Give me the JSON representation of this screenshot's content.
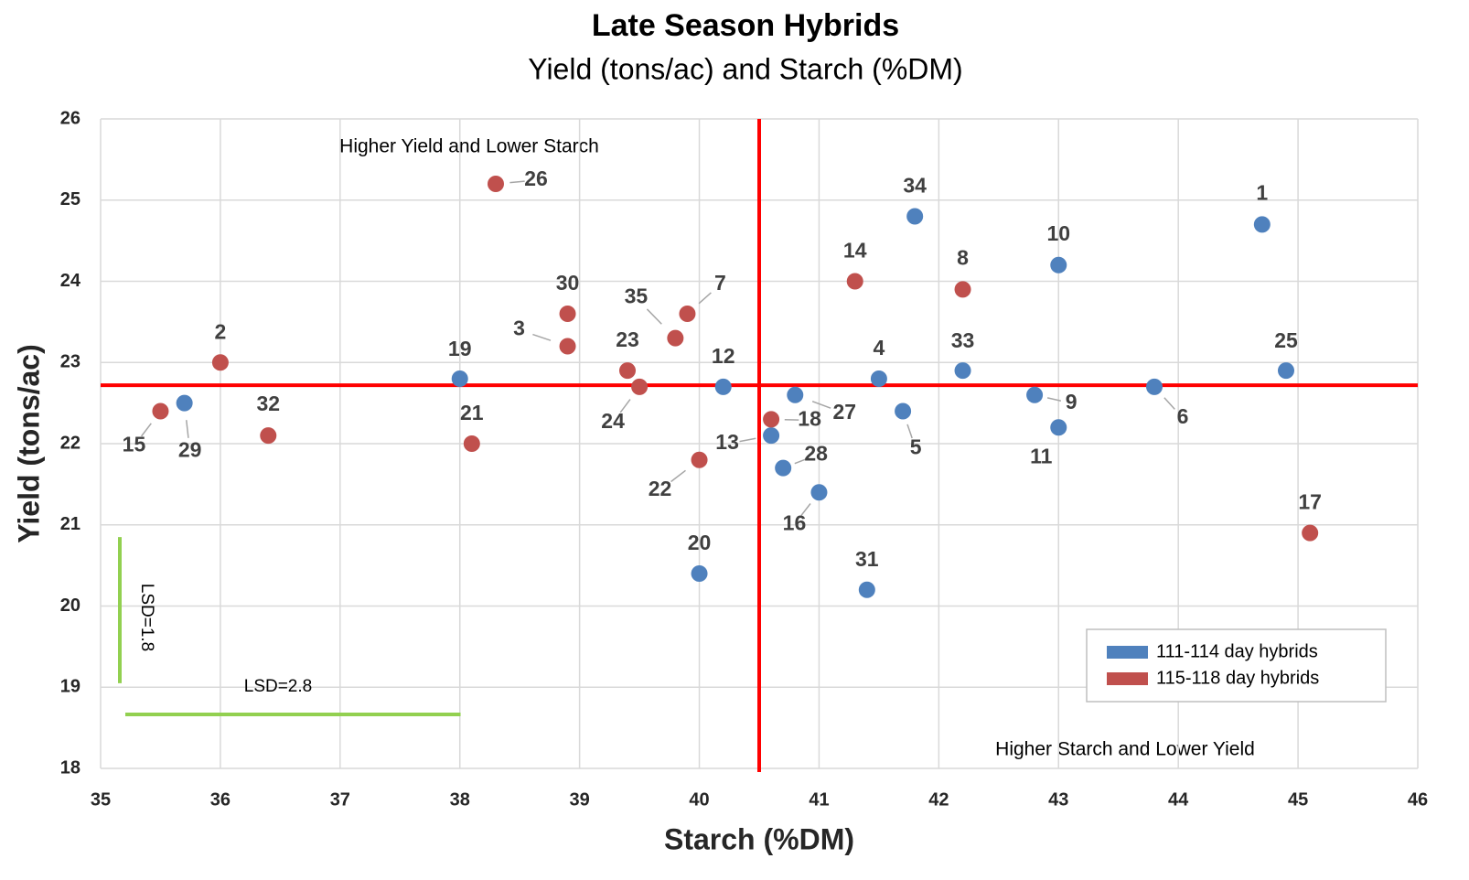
{
  "chart_data": {
    "type": "scatter",
    "title": "Late Season Hybrids",
    "subtitle": "Yield (tons/ac) and Starch (%DM)",
    "x_label": "Starch (%DM)",
    "y_label": "Yield (tons/ac)",
    "xlim": [
      35,
      46
    ],
    "xticks": [
      35,
      36,
      37,
      38,
      39,
      40,
      41,
      42,
      43,
      44,
      45,
      46
    ],
    "ylim": [
      18,
      26
    ],
    "yticks": [
      18,
      19,
      20,
      21,
      22,
      23,
      24,
      25,
      26
    ],
    "grid": true,
    "legend": "bottom-right",
    "series": [
      {
        "name": "111-114 day hybrids",
        "color": "#4f81bd",
        "x": [
          44.7,
          41.8,
          43.0,
          38.0,
          40.2,
          41.5,
          42.2,
          44.9,
          43.8,
          42.8,
          43.0,
          41.7,
          40.8,
          40.6,
          40.7,
          41.0,
          40.0,
          41.4,
          35.7
        ],
        "values": [
          24.7,
          24.8,
          24.2,
          22.8,
          22.7,
          22.8,
          22.9,
          22.9,
          22.7,
          22.6,
          22.2,
          22.4,
          22.6,
          22.1,
          21.7,
          21.4,
          20.4,
          20.2,
          22.5
        ],
        "labels": [
          "1",
          "34",
          "10",
          "19",
          "12",
          "4",
          "33",
          "25",
          "6",
          "9",
          "11",
          "5",
          "27",
          "13",
          "28",
          "16",
          "20",
          "31",
          "29"
        ]
      },
      {
        "name": "115-118 day hybrids",
        "color": "#c0504d",
        "x": [
          38.3,
          36.0,
          35.5,
          36.4,
          38.1,
          38.9,
          38.9,
          39.4,
          39.5,
          39.8,
          39.9,
          40.0,
          40.6,
          41.3,
          42.2,
          45.1
        ],
        "values": [
          25.2,
          23.0,
          22.4,
          22.1,
          22.0,
          23.6,
          23.2,
          22.9,
          22.7,
          23.3,
          23.6,
          21.8,
          22.3,
          24.0,
          23.9,
          20.9
        ],
        "labels": [
          "26",
          "2",
          "15",
          "32",
          "21",
          "30",
          "3",
          "23",
          "24",
          "35",
          "7",
          "22",
          "18",
          "14",
          "8",
          "17"
        ]
      }
    ],
    "reference_lines": {
      "x": 40.5,
      "y": 22.72,
      "color": "#ff0000"
    },
    "annotations": [
      "Higher Yield and Lower Starch",
      "Higher Starch and Lower Yield"
    ],
    "lsd": {
      "yield": {
        "value": 1.8,
        "label": "LSD=1.8"
      },
      "starch": {
        "value": 2.8,
        "label": "LSD=2.8"
      },
      "color": "#92d050"
    }
  }
}
